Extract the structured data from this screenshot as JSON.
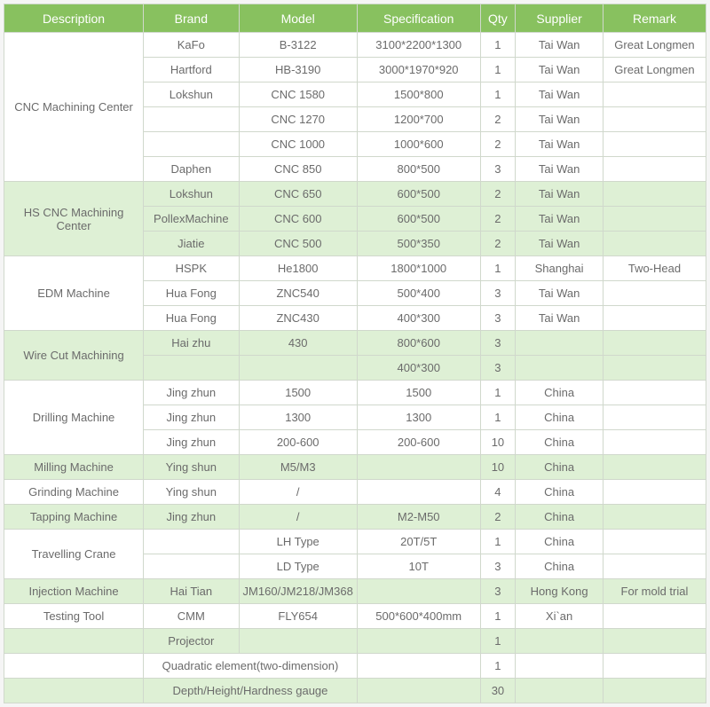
{
  "headers": {
    "description": "Description",
    "brand": "Brand",
    "model": "Model",
    "specification": "Specification",
    "qty": "Qty",
    "supplier": "Supplier",
    "remark": "Remark"
  },
  "sections": {
    "cnc": "CNC Machining Center",
    "hscnc": "HS CNC Machining Center",
    "edm": "EDM Machine",
    "wire": "Wire Cut Machining",
    "drill": "Drilling Machine",
    "mill": "Milling Machine",
    "grind": "Grinding Machine",
    "tap": "Tapping Machine",
    "crane": "Travelling Crane",
    "inj": "Injection Machine",
    "test": "Testing Tool"
  },
  "rows": {
    "r0": {
      "brand": "KaFo",
      "model": "B-3122",
      "spec": "3100*2200*1300",
      "qty": "1",
      "supplier": "Tai Wan",
      "remark": "Great Longmen"
    },
    "r1": {
      "brand": "Hartford",
      "model": "HB-3190",
      "spec": "3000*1970*920",
      "qty": "1",
      "supplier": "Tai Wan",
      "remark": "Great Longmen"
    },
    "r2": {
      "brand": "Lokshun",
      "model": "CNC 1580",
      "spec": "1500*800",
      "qty": "1",
      "supplier": "Tai Wan",
      "remark": ""
    },
    "r3": {
      "brand": "",
      "model": "CNC 1270",
      "spec": "1200*700",
      "qty": "2",
      "supplier": "Tai Wan",
      "remark": ""
    },
    "r4": {
      "brand": "",
      "model": "CNC 1000",
      "spec": "1000*600",
      "qty": "2",
      "supplier": "Tai Wan",
      "remark": ""
    },
    "r5": {
      "brand": "Daphen",
      "model": "CNC 850",
      "spec": "800*500",
      "qty": "3",
      "supplier": "Tai Wan",
      "remark": ""
    },
    "r6": {
      "brand": "Lokshun",
      "model": "CNC 650",
      "spec": "600*500",
      "qty": "2",
      "supplier": "Tai Wan",
      "remark": ""
    },
    "r7": {
      "brand": "PollexMachine",
      "model": "CNC 600",
      "spec": "600*500",
      "qty": "2",
      "supplier": "Tai Wan",
      "remark": ""
    },
    "r8": {
      "brand": "Jiatie",
      "model": "CNC 500",
      "spec": "500*350",
      "qty": "2",
      "supplier": "Tai Wan",
      "remark": ""
    },
    "r9": {
      "brand": "HSPK",
      "model": "He1800",
      "spec": "1800*1000",
      "qty": "1",
      "supplier": "Shanghai",
      "remark": "Two-Head"
    },
    "r10": {
      "brand": "Hua Fong",
      "model": "ZNC540",
      "spec": "500*400",
      "qty": "3",
      "supplier": "Tai Wan",
      "remark": ""
    },
    "r11": {
      "brand": "Hua Fong",
      "model": "ZNC430",
      "spec": "400*300",
      "qty": "3",
      "supplier": "Tai Wan",
      "remark": ""
    },
    "r12": {
      "brand": "Hai zhu",
      "model": "430",
      "spec": "800*600",
      "qty": "3",
      "supplier": "",
      "remark": ""
    },
    "r13": {
      "brand": "",
      "model": "",
      "spec": "400*300",
      "qty": "3",
      "supplier": "",
      "remark": ""
    },
    "r14": {
      "brand": "Jing zhun",
      "model": "1500",
      "spec": "1500",
      "qty": "1",
      "supplier": "China",
      "remark": ""
    },
    "r15": {
      "brand": "Jing zhun",
      "model": "1300",
      "spec": "1300",
      "qty": "1",
      "supplier": "China",
      "remark": ""
    },
    "r16": {
      "brand": "Jing zhun",
      "model": "200-600",
      "spec": "200-600",
      "qty": "10",
      "supplier": "China",
      "remark": ""
    },
    "r17": {
      "brand": "Ying shun",
      "model": "M5/M3",
      "spec": "",
      "qty": "10",
      "supplier": "China",
      "remark": ""
    },
    "r18": {
      "brand": "Ying shun",
      "model": "/",
      "spec": "",
      "qty": "4",
      "supplier": "China",
      "remark": ""
    },
    "r19": {
      "brand": "Jing zhun",
      "model": "/",
      "spec": "M2-M50",
      "qty": "2",
      "supplier": "China",
      "remark": ""
    },
    "r20": {
      "brand": "",
      "model": "LH Type",
      "spec": "20T/5T",
      "qty": "1",
      "supplier": "China",
      "remark": ""
    },
    "r21": {
      "brand": "",
      "model": "LD Type",
      "spec": "10T",
      "qty": "3",
      "supplier": "China",
      "remark": ""
    },
    "r22": {
      "brand": "Hai Tian",
      "model": "JM160/JM218/JM368",
      "spec": "",
      "qty": "3",
      "supplier": "Hong Kong",
      "remark": "For mold trial"
    },
    "r23": {
      "brand": "CMM",
      "model": "FLY654",
      "spec": "500*600*400mm",
      "qty": "1",
      "supplier": "Xi`an",
      "remark": ""
    },
    "r24": {
      "brand": "Projector",
      "model": "",
      "spec": "",
      "qty": "1",
      "supplier": "",
      "remark": ""
    },
    "r25": {
      "brand": "Quadratic element(two-dimension)",
      "model": "",
      "spec": "",
      "qty": "1",
      "supplier": "",
      "remark": ""
    },
    "r26": {
      "brand": "Depth/Height/Hardness gauge",
      "model": "",
      "spec": "",
      "qty": "30",
      "supplier": "",
      "remark": ""
    }
  },
  "style": {
    "header_bg": "#88c15f",
    "header_fg": "#ffffff",
    "alt_bg": "#def0d5",
    "plain_bg": "#ffffff",
    "border_color": "#d0d8cc",
    "text_color": "#6b6b6b"
  }
}
